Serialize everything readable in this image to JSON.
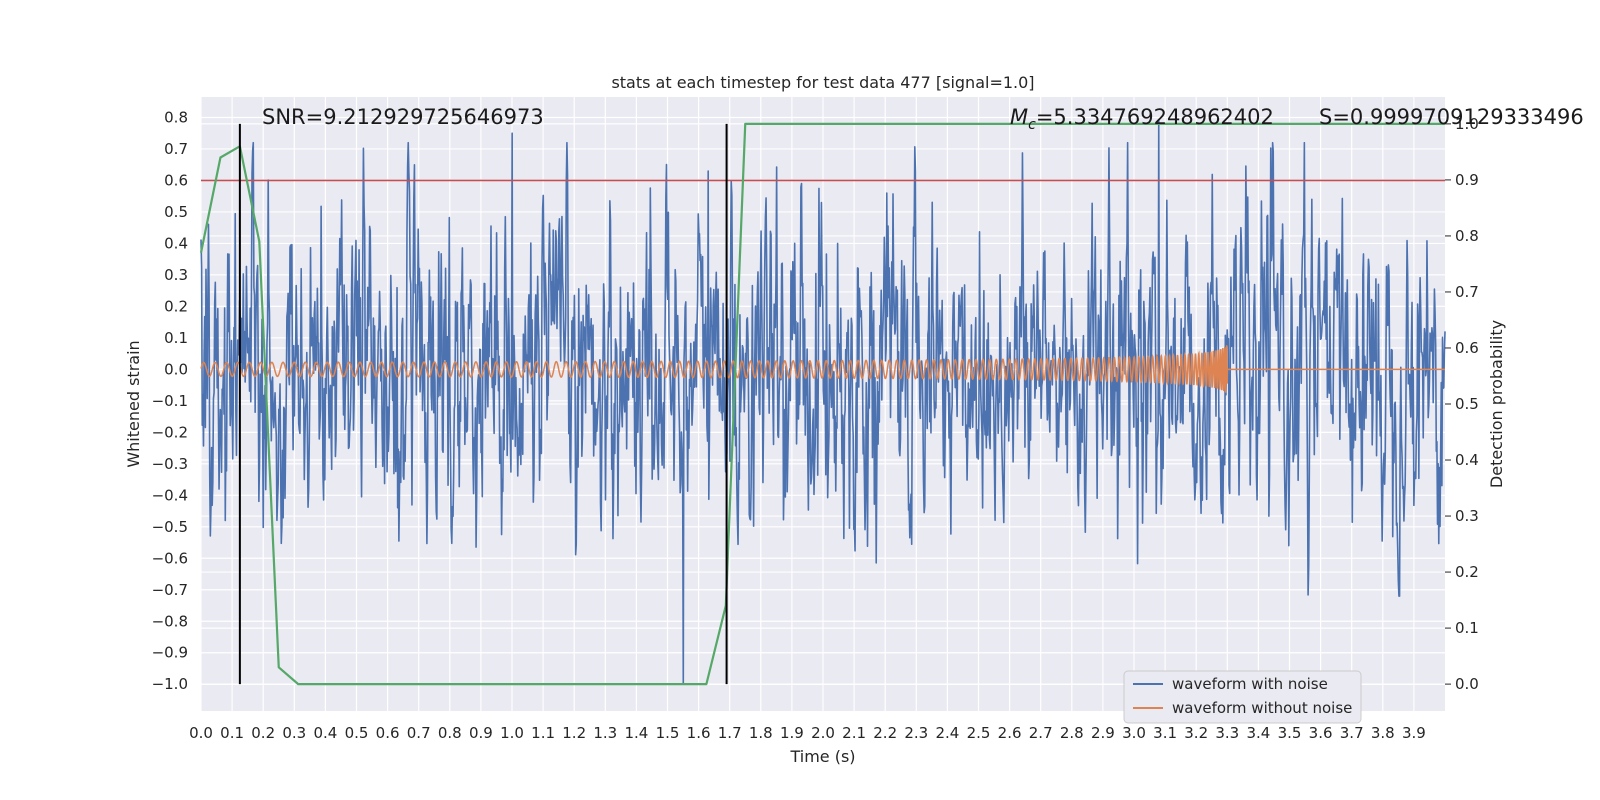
{
  "chart_data": {
    "type": "line",
    "title": "stats at each timestep for test data 477 [signal=1.0]",
    "xlabel": "Time (s)",
    "ylabel": "Whitened strain",
    "y2label": "Detection probability",
    "xlim": [
      0.0,
      4.0
    ],
    "ylim": [
      -1.085,
      0.865
    ],
    "y2lim": [
      -0.048,
      1.048
    ],
    "x_ticks": [
      "0.0",
      "0.1",
      "0.2",
      "0.3",
      "0.4",
      "0.5",
      "0.6",
      "0.7",
      "0.8",
      "0.9",
      "1.0",
      "1.1",
      "1.2",
      "1.3",
      "1.4",
      "1.5",
      "1.6",
      "1.7",
      "1.8",
      "1.9",
      "2.0",
      "2.1",
      "2.2",
      "2.3",
      "2.4",
      "2.5",
      "2.6",
      "2.7",
      "2.8",
      "2.9",
      "3.0",
      "3.1",
      "3.2",
      "3.3",
      "3.4",
      "3.5",
      "3.6",
      "3.7",
      "3.8",
      "3.9"
    ],
    "y_ticks": [
      "0.8",
      "0.7",
      "0.6",
      "0.5",
      "0.4",
      "0.3",
      "0.2",
      "0.1",
      "0.0",
      "−0.1",
      "−0.2",
      "−0.3",
      "−0.4",
      "−0.5",
      "−0.6",
      "−0.7",
      "−0.8",
      "−0.9",
      "−1.0"
    ],
    "y2_ticks": [
      "1.0",
      "0.9",
      "0.8",
      "0.7",
      "0.6",
      "0.5",
      "0.4",
      "0.3",
      "0.2",
      "0.1",
      "0.0"
    ],
    "annotations": {
      "snr": "SNR=9.212929725646973",
      "mc_symbol": "M",
      "mc_sub": "c",
      "mc_value": "=5.334769248962402",
      "s": "S=0.9999709129333496"
    },
    "threshold": {
      "y": 0.6,
      "color": "#c44e52"
    },
    "vertical_markers": [
      0.125,
      1.69
    ],
    "series": [
      {
        "name": "waveform with noise",
        "color": "#4c72b0",
        "kind": "noise",
        "amplitude_sd": 0.2,
        "spikes": [
          [
            1.55,
            -1.0
          ],
          [
            1.0,
            0.75
          ],
          [
            3.08,
            0.79
          ],
          [
            1.63,
            0.63
          ]
        ]
      },
      {
        "name": "waveform without noise",
        "color": "#dd8452",
        "kind": "chirp",
        "t_start": 0.0,
        "t_merge": 3.3,
        "amplitude_start": 0.022,
        "amplitude_end": 0.2,
        "freq_start": 27,
        "freq_end": 320
      },
      {
        "name": "detection probability",
        "color": "#55a868",
        "axis": "right",
        "x": [
          0.0,
          0.0625,
          0.125,
          0.1875,
          0.25,
          0.3125,
          1.5,
          1.625,
          1.6875,
          1.75,
          2.0,
          3.0,
          4.0
        ],
        "y": [
          0.77,
          0.94,
          0.96,
          0.79,
          0.03,
          0.0,
          0.0,
          0.0,
          0.14,
          1.0,
          1.0,
          1.0,
          1.0
        ]
      }
    ],
    "legend": {
      "position": "lower-right",
      "entries": [
        "waveform with noise",
        "waveform without noise"
      ]
    },
    "grid": true,
    "background": "#eaeaf2"
  }
}
